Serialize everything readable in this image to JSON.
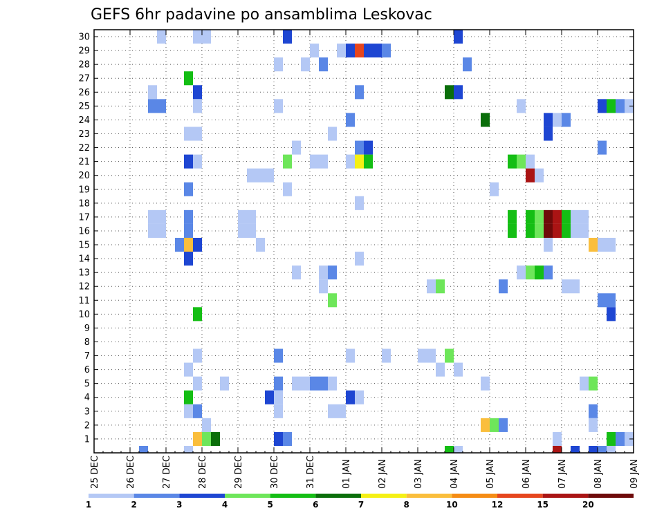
{
  "chart_data": {
    "type": "heatmap",
    "title": "GEFS 6hr padavine po ansamblima Leskovac",
    "xlabel": "",
    "ylabel": "",
    "x_tick_labels": [
      "25 DEC",
      "26 DEC",
      "27 DEC",
      "28 DEC",
      "29 DEC",
      "30 DEC",
      "31 DEC",
      "01 JAN",
      "02 JAN",
      "03 JAN",
      "04 JAN",
      "05 JAN",
      "06 JAN",
      "07 JAN",
      "08 JAN",
      "09 JAN"
    ],
    "y_tick_labels": [
      "1",
      "2",
      "3",
      "4",
      "5",
      "6",
      "7",
      "8",
      "9",
      "10",
      "11",
      "12",
      "13",
      "14",
      "15",
      "16",
      "17",
      "18",
      "19",
      "20",
      "21",
      "22",
      "23",
      "24",
      "25",
      "26",
      "27",
      "28",
      "29",
      "30"
    ],
    "time_steps_per_day": 4,
    "ylim": [
      0,
      30
    ],
    "grid": true,
    "colorbar": {
      "placement": "bottom",
      "labels": [
        "1",
        "2",
        "3",
        "4",
        "5",
        "6",
        "7",
        "8",
        "10",
        "12",
        "15",
        "20"
      ],
      "colors": [
        "#b4c8f5",
        "#5a87e6",
        "#1e46d2",
        "#6ee65a",
        "#14be14",
        "#0a6e0a",
        "#f5f014",
        "#fabe3c",
        "#f58c14",
        "#e6461e",
        "#aa1414",
        "#6e0a0a"
      ]
    },
    "cell_format": "[time step index after 25 DEC 00Z (6-hour steps), ensemble member, color class 1-12]",
    "cells": [
      [
        7,
        30,
        1
      ],
      [
        11,
        30,
        1
      ],
      [
        12,
        30,
        1
      ],
      [
        21,
        30,
        3
      ],
      [
        40,
        30,
        3
      ],
      [
        24,
        29,
        1
      ],
      [
        27,
        29,
        1
      ],
      [
        28,
        29,
        3
      ],
      [
        29,
        29,
        10
      ],
      [
        30,
        29,
        3
      ],
      [
        31,
        29,
        3
      ],
      [
        32,
        29,
        2
      ],
      [
        20,
        28,
        1
      ],
      [
        23,
        28,
        1
      ],
      [
        25,
        28,
        2
      ],
      [
        41,
        28,
        2
      ],
      [
        10,
        27,
        5
      ],
      [
        6,
        26,
        1
      ],
      [
        11,
        26,
        3
      ],
      [
        29,
        26,
        2
      ],
      [
        39,
        26,
        6
      ],
      [
        40,
        26,
        3
      ],
      [
        6,
        25,
        2
      ],
      [
        7,
        25,
        2
      ],
      [
        11,
        25,
        1
      ],
      [
        20,
        25,
        1
      ],
      [
        47,
        25,
        1
      ],
      [
        56,
        25,
        3
      ],
      [
        57,
        25,
        5
      ],
      [
        58,
        25,
        2
      ],
      [
        59,
        25,
        1
      ],
      [
        28,
        24,
        2
      ],
      [
        43,
        24,
        6
      ],
      [
        50,
        24,
        3
      ],
      [
        51,
        24,
        1
      ],
      [
        52,
        24,
        2
      ],
      [
        10,
        23,
        1
      ],
      [
        11,
        23,
        1
      ],
      [
        26,
        23,
        1
      ],
      [
        50,
        23,
        3
      ],
      [
        22,
        22,
        1
      ],
      [
        29,
        22,
        2
      ],
      [
        30,
        22,
        3
      ],
      [
        56,
        22,
        2
      ],
      [
        10,
        21,
        3
      ],
      [
        11,
        21,
        1
      ],
      [
        21,
        21,
        4
      ],
      [
        24,
        21,
        1
      ],
      [
        25,
        21,
        1
      ],
      [
        28,
        21,
        1
      ],
      [
        29,
        21,
        7
      ],
      [
        30,
        21,
        5
      ],
      [
        46,
        21,
        5
      ],
      [
        47,
        21,
        4
      ],
      [
        48,
        21,
        1
      ],
      [
        17,
        20,
        1
      ],
      [
        18,
        20,
        1
      ],
      [
        19,
        20,
        1
      ],
      [
        48,
        20,
        11
      ],
      [
        49,
        20,
        1
      ],
      [
        10,
        19,
        2
      ],
      [
        21,
        19,
        1
      ],
      [
        44,
        19,
        1
      ],
      [
        29,
        18,
        1
      ],
      [
        6,
        17,
        1
      ],
      [
        7,
        17,
        1
      ],
      [
        10,
        17,
        2
      ],
      [
        16,
        17,
        1
      ],
      [
        17,
        17,
        1
      ],
      [
        46,
        17,
        5
      ],
      [
        48,
        17,
        5
      ],
      [
        49,
        17,
        4
      ],
      [
        50,
        17,
        12
      ],
      [
        51,
        17,
        11
      ],
      [
        52,
        17,
        5
      ],
      [
        53,
        17,
        1
      ],
      [
        54,
        17,
        1
      ],
      [
        6,
        16,
        1
      ],
      [
        7,
        16,
        1
      ],
      [
        10,
        16,
        2
      ],
      [
        16,
        16,
        1
      ],
      [
        17,
        16,
        1
      ],
      [
        46,
        16,
        5
      ],
      [
        48,
        16,
        5
      ],
      [
        49,
        16,
        4
      ],
      [
        50,
        16,
        12
      ],
      [
        51,
        16,
        11
      ],
      [
        52,
        16,
        5
      ],
      [
        53,
        16,
        1
      ],
      [
        54,
        16,
        1
      ],
      [
        9,
        15,
        2
      ],
      [
        10,
        15,
        8
      ],
      [
        11,
        15,
        3
      ],
      [
        18,
        15,
        1
      ],
      [
        50,
        15,
        1
      ],
      [
        55,
        15,
        8
      ],
      [
        56,
        15,
        1
      ],
      [
        57,
        15,
        1
      ],
      [
        10,
        14,
        3
      ],
      [
        29,
        14,
        1
      ],
      [
        22,
        13,
        1
      ],
      [
        25,
        13,
        1
      ],
      [
        26,
        13,
        2
      ],
      [
        47,
        13,
        1
      ],
      [
        48,
        13,
        4
      ],
      [
        49,
        13,
        5
      ],
      [
        50,
        13,
        2
      ],
      [
        25,
        12,
        1
      ],
      [
        37,
        12,
        1
      ],
      [
        38,
        12,
        4
      ],
      [
        45,
        12,
        2
      ],
      [
        52,
        12,
        1
      ],
      [
        53,
        12,
        1
      ],
      [
        26,
        11,
        4
      ],
      [
        56,
        11,
        2
      ],
      [
        57,
        11,
        2
      ],
      [
        11,
        10,
        5
      ],
      [
        57,
        10,
        3
      ],
      [
        11,
        7,
        1
      ],
      [
        20,
        7,
        2
      ],
      [
        28,
        7,
        1
      ],
      [
        32,
        7,
        1
      ],
      [
        36,
        7,
        1
      ],
      [
        37,
        7,
        1
      ],
      [
        39,
        7,
        4
      ],
      [
        10,
        6,
        1
      ],
      [
        38,
        6,
        1
      ],
      [
        40,
        6,
        1
      ],
      [
        11,
        5,
        1
      ],
      [
        14,
        5,
        1
      ],
      [
        20,
        5,
        2
      ],
      [
        22,
        5,
        1
      ],
      [
        23,
        5,
        1
      ],
      [
        24,
        5,
        2
      ],
      [
        25,
        5,
        2
      ],
      [
        26,
        5,
        1
      ],
      [
        43,
        5,
        1
      ],
      [
        54,
        5,
        1
      ],
      [
        55,
        5,
        4
      ],
      [
        10,
        4,
        5
      ],
      [
        19,
        4,
        3
      ],
      [
        20,
        4,
        1
      ],
      [
        28,
        4,
        3
      ],
      [
        29,
        4,
        1
      ],
      [
        10,
        3,
        1
      ],
      [
        11,
        3,
        2
      ],
      [
        20,
        3,
        1
      ],
      [
        26,
        3,
        1
      ],
      [
        27,
        3,
        1
      ],
      [
        55,
        3,
        2
      ],
      [
        12,
        2,
        1
      ],
      [
        43,
        2,
        8
      ],
      [
        44,
        2,
        4
      ],
      [
        45,
        2,
        2
      ],
      [
        55,
        2,
        1
      ],
      [
        11,
        1,
        8
      ],
      [
        12,
        1,
        4
      ],
      [
        13,
        1,
        6
      ],
      [
        20,
        1,
        3
      ],
      [
        21,
        1,
        2
      ],
      [
        51,
        1,
        1
      ],
      [
        57,
        1,
        5
      ],
      [
        58,
        1,
        2
      ],
      [
        59,
        1,
        1
      ],
      [
        5,
        0,
        2
      ],
      [
        10,
        0,
        1
      ],
      [
        39,
        0,
        5
      ],
      [
        40,
        0,
        1
      ],
      [
        51,
        0,
        11
      ],
      [
        53,
        0,
        3
      ],
      [
        55,
        0,
        3
      ],
      [
        56,
        0,
        2
      ],
      [
        57,
        0,
        1
      ]
    ]
  }
}
